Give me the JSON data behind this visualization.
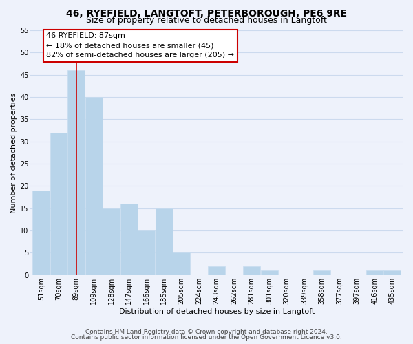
{
  "title": "46, RYEFIELD, LANGTOFT, PETERBOROUGH, PE6 9RE",
  "subtitle": "Size of property relative to detached houses in Langtoft",
  "xlabel": "Distribution of detached houses by size in Langtoft",
  "ylabel": "Number of detached properties",
  "bin_labels": [
    "51sqm",
    "70sqm",
    "89sqm",
    "109sqm",
    "128sqm",
    "147sqm",
    "166sqm",
    "185sqm",
    "205sqm",
    "224sqm",
    "243sqm",
    "262sqm",
    "281sqm",
    "301sqm",
    "320sqm",
    "339sqm",
    "358sqm",
    "377sqm",
    "397sqm",
    "416sqm",
    "435sqm"
  ],
  "bar_values": [
    19,
    32,
    46,
    40,
    15,
    16,
    10,
    15,
    5,
    0,
    2,
    0,
    2,
    1,
    0,
    0,
    1,
    0,
    0,
    1,
    1
  ],
  "bar_color": "#b8d4ea",
  "bar_edge_color": "#c8ddf0",
  "grid_color": "#ccdaee",
  "background_color": "#eef2fb",
  "vline_color": "#cc0000",
  "annotation_line1": "46 RYEFIELD: 87sqm",
  "annotation_line2": "← 18% of detached houses are smaller (45)",
  "annotation_line3": "82% of semi-detached houses are larger (205) →",
  "annotation_box_facecolor": "#ffffff",
  "annotation_box_edgecolor": "#cc0000",
  "ylim": [
    0,
    55
  ],
  "yticks": [
    0,
    5,
    10,
    15,
    20,
    25,
    30,
    35,
    40,
    45,
    50,
    55
  ],
  "footnote1": "Contains HM Land Registry data © Crown copyright and database right 2024.",
  "footnote2": "Contains public sector information licensed under the Open Government Licence v3.0.",
  "title_fontsize": 10,
  "subtitle_fontsize": 9,
  "axis_label_fontsize": 8,
  "tick_fontsize": 7,
  "annotation_fontsize": 8,
  "footnote_fontsize": 6.5,
  "vline_bin_index": 2
}
